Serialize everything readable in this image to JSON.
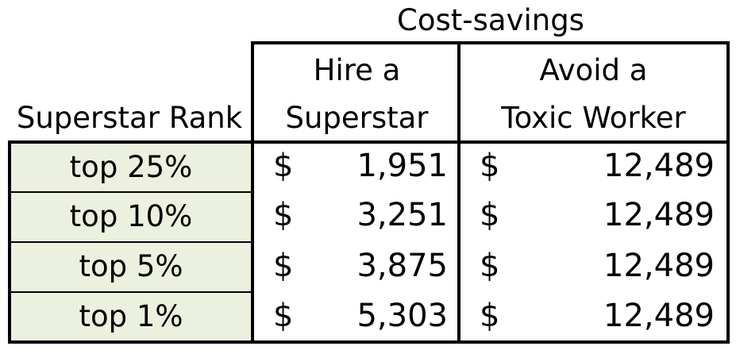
{
  "title": "Cost-savings",
  "headers": {
    "rank": "Superstar Rank",
    "hire_line1": "Hire a",
    "hire_line2": "Superstar",
    "avoid_line1": "Avoid a",
    "avoid_line2": "Toxic Worker"
  },
  "currency_symbol": "$",
  "rows": [
    {
      "rank": "top 25%",
      "hire": "1,951",
      "avoid": "12,489"
    },
    {
      "rank": "top 10%",
      "hire": "3,251",
      "avoid": "12,489"
    },
    {
      "rank": "top 5%",
      "hire": "3,875",
      "avoid": "12,489"
    },
    {
      "rank": "top 1%",
      "hire": "5,303",
      "avoid": "12,489"
    }
  ],
  "colors": {
    "rank_cell_fill": "#ebf1de",
    "border": "#000000"
  }
}
